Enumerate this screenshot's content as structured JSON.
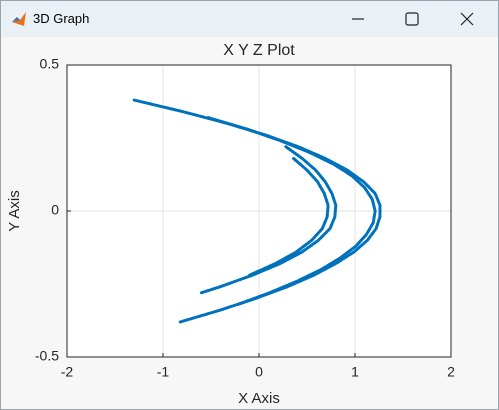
{
  "window_title": "3D Graph",
  "chart_data": {
    "type": "line",
    "title": "X Y Z Plot",
    "x_label": "X Axis",
    "y_label": "Y Axis",
    "xlim": [
      -2,
      2
    ],
    "xticks": [
      -2,
      -1,
      0,
      1,
      2
    ],
    "ylim": [
      -0.5,
      0.5
    ],
    "yticks": [
      -0.5,
      0,
      0.5
    ],
    "grid": true,
    "series": [
      {
        "color": "#0072bd",
        "x": [
          -1.3,
          -0.79,
          -0.33,
          0.07,
          0.41,
          0.69,
          0.92,
          1.09,
          1.21,
          1.26,
          1.26,
          1.22,
          1.13,
          0.99,
          0.8,
          0.57,
          0.29,
          -0.04,
          -0.41,
          -0.82
        ],
        "values": [
          0.38,
          0.34,
          0.3,
          0.26,
          0.22,
          0.18,
          0.14,
          0.1,
          0.06,
          0.02,
          -0.02,
          -0.06,
          -0.1,
          -0.14,
          -0.18,
          -0.22,
          -0.26,
          -0.3,
          -0.34,
          -0.38
        ]
      },
      {
        "color": "#0072bd",
        "x": [
          -0.53,
          -0.12,
          0.23,
          0.53,
          0.78,
          0.97,
          1.1,
          1.18,
          1.21,
          1.19,
          1.12,
          1.01,
          0.85,
          0.65,
          0.4,
          0.11,
          -0.22
        ],
        "values": [
          0.32,
          0.28,
          0.24,
          0.2,
          0.16,
          0.12,
          0.08,
          0.04,
          0.0,
          -0.04,
          -0.08,
          -0.12,
          -0.16,
          -0.2,
          -0.24,
          -0.28,
          -0.32
        ]
      },
      {
        "color": "#0072bd",
        "x": [
          0.28,
          0.45,
          0.59,
          0.69,
          0.76,
          0.8,
          0.79,
          0.74,
          0.62,
          0.45,
          0.22,
          -0.07,
          -0.41,
          -0.6
        ],
        "values": [
          0.22,
          0.18,
          0.14,
          0.1,
          0.06,
          0.02,
          -0.02,
          -0.06,
          -0.1,
          -0.14,
          -0.18,
          -0.22,
          -0.26,
          -0.28
        ]
      },
      {
        "color": "#0072bd",
        "x": [
          0.36,
          0.5,
          0.61,
          0.68,
          0.72,
          0.71,
          0.66,
          0.55,
          0.39,
          0.17,
          -0.1
        ],
        "values": [
          0.18,
          0.14,
          0.1,
          0.06,
          0.02,
          -0.02,
          -0.06,
          -0.1,
          -0.14,
          -0.18,
          -0.22
        ]
      }
    ]
  }
}
